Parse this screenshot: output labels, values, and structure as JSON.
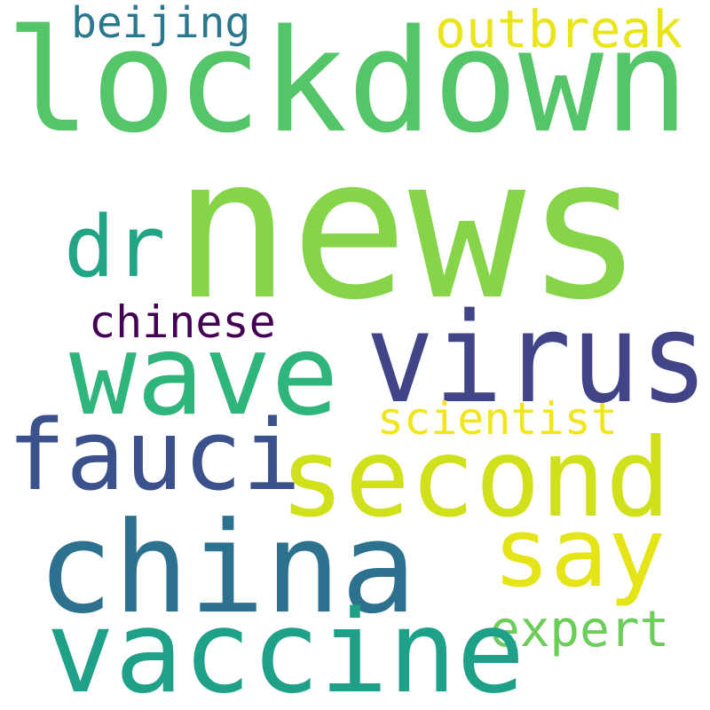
{
  "words": [
    {
      "id": "lockdown",
      "text": "lockdown",
      "color": "#54c568"
    },
    {
      "id": "news",
      "text": "news",
      "color": "#86d549"
    },
    {
      "id": "beijing",
      "text": "beijing",
      "color": "#2a788e"
    },
    {
      "id": "outbreak",
      "text": "outbreak",
      "color": "#eae51a"
    },
    {
      "id": "dr",
      "text": "dr",
      "color": "#21a585"
    },
    {
      "id": "wave",
      "text": "wave",
      "color": "#2fb47c"
    },
    {
      "id": "virus",
      "text": "virus",
      "color": "#414487"
    },
    {
      "id": "chinese",
      "text": "chinese",
      "color": "#440154"
    },
    {
      "id": "fauci",
      "text": "fauci",
      "color": "#3b518b"
    },
    {
      "id": "scientist",
      "text": "scientist",
      "color": "#f1e51d"
    },
    {
      "id": "second",
      "text": "second",
      "color": "#d0e11c"
    },
    {
      "id": "say",
      "text": "say",
      "color": "#e5e419"
    },
    {
      "id": "china",
      "text": "china",
      "color": "#2c728e"
    },
    {
      "id": "expert",
      "text": "expert",
      "color": "#6ccd5a"
    },
    {
      "id": "vaccine",
      "text": "vaccine",
      "color": "#1fa088"
    }
  ]
}
